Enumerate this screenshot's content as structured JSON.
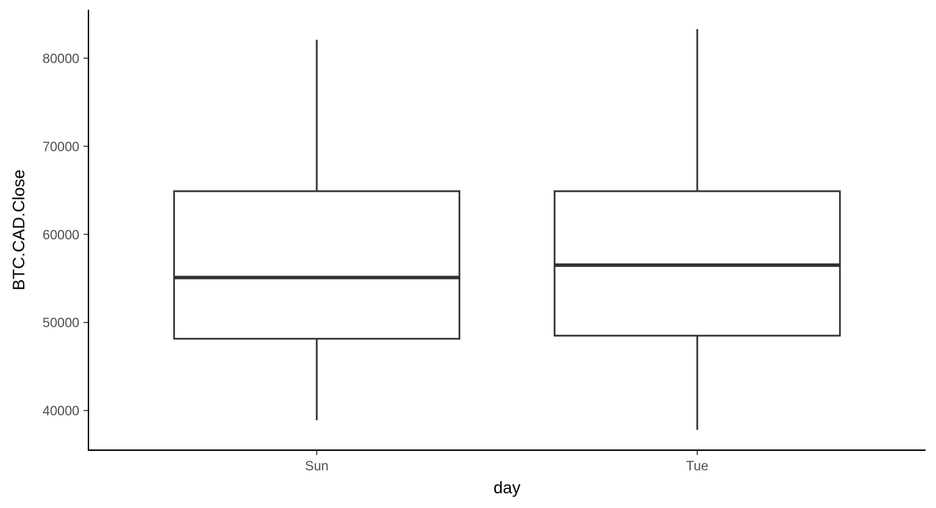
{
  "chart_data": {
    "type": "boxplot",
    "title": "",
    "xlabel": "day",
    "ylabel": "BTC.CAD.Close",
    "categories": [
      "Sun",
      "Tue"
    ],
    "boxes": [
      {
        "category": "Sun",
        "min": 38900,
        "q1": 48150,
        "median": 55100,
        "q3": 64900,
        "max": 82100
      },
      {
        "category": "Tue",
        "min": 37800,
        "q1": 48500,
        "median": 56500,
        "q3": 64900,
        "max": 83300
      }
    ],
    "y_ticks": [
      40000,
      50000,
      60000,
      70000,
      80000
    ],
    "y_tick_labels": [
      "40000",
      "50000",
      "60000",
      "70000",
      "80000"
    ],
    "ylim": [
      35500,
      85500
    ],
    "grid": false,
    "legend": "none"
  }
}
